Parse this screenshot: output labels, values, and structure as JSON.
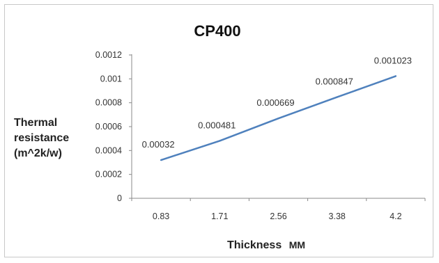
{
  "chart_data": {
    "type": "line",
    "title": "CP400",
    "xlabel_main": "Thickness",
    "xlabel_unit": "MM",
    "ylabel_lines": [
      "Thermal",
      "resistance",
      "(m^2k/w)"
    ],
    "categories": [
      "0.83",
      "1.71",
      "2.56",
      "3.38",
      "4.2"
    ],
    "series": [
      {
        "values": [
          0.00032,
          0.000481,
          0.000669,
          0.000847,
          0.001023
        ]
      }
    ],
    "data_labels": [
      "0.00032",
      "0.000481",
      "0.000669",
      "0.000847",
      "0.001023"
    ],
    "y_ticks": [
      "0",
      "0.0002",
      "0.0004",
      "0.0006",
      "0.0008",
      "0.001",
      "0.0012"
    ],
    "ylim": [
      0,
      0.0012
    ],
    "grid": false,
    "legend": "none",
    "line_color": "#4f81bd"
  }
}
